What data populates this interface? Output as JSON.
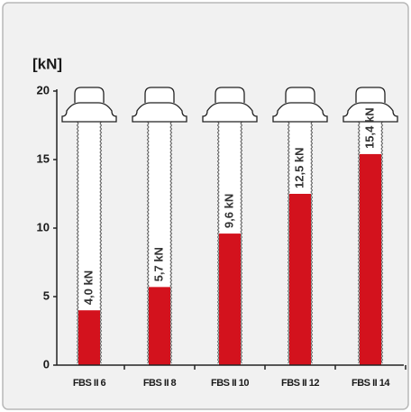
{
  "chart_data": {
    "type": "bar",
    "y_label": "[kN]",
    "categories": [
      "FBS II 6",
      "FBS II 8",
      "FBS II 10",
      "FBS II 12",
      "FBS II 14"
    ],
    "values": [
      4.0,
      5.7,
      9.6,
      12.5,
      15.4
    ],
    "value_labels": [
      "4,0 kN",
      "5,7 kN",
      "9,6 kN",
      "12,5 kN",
      "15,4 kN"
    ],
    "color": "#d3121d",
    "ylim": [
      0,
      20
    ],
    "yticks": [
      0,
      5,
      10,
      15,
      20
    ]
  }
}
